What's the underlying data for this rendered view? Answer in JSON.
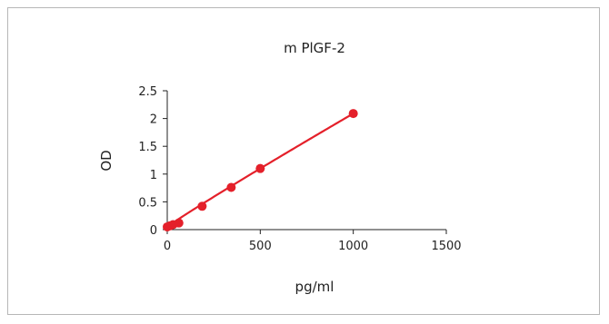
{
  "chart_data": {
    "type": "scatter",
    "title": "m PlGF-2",
    "xlabel": "pg/ml",
    "ylabel": "OD",
    "xlim": [
      0,
      1500
    ],
    "ylim": [
      0,
      2.5
    ],
    "xticks": [
      0,
      500,
      1000,
      1500
    ],
    "yticks": [
      0,
      0.5,
      1,
      1.5,
      2,
      2.5
    ],
    "xtick_labels": [
      "0",
      "500",
      "1000",
      "1500"
    ],
    "ytick_labels": [
      "0",
      "0.5",
      "1",
      "1.5",
      "2",
      "2.5"
    ],
    "grid": false,
    "legend": false,
    "series": [
      {
        "color": "#e4202a",
        "x": [
          0,
          15.6,
          31.3,
          62.5,
          187.5,
          343.8,
          500,
          1000
        ],
        "y": [
          0.05,
          0.07,
          0.09,
          0.12,
          0.42,
          0.76,
          1.1,
          2.09
        ],
        "fit_line": true
      }
    ]
  }
}
